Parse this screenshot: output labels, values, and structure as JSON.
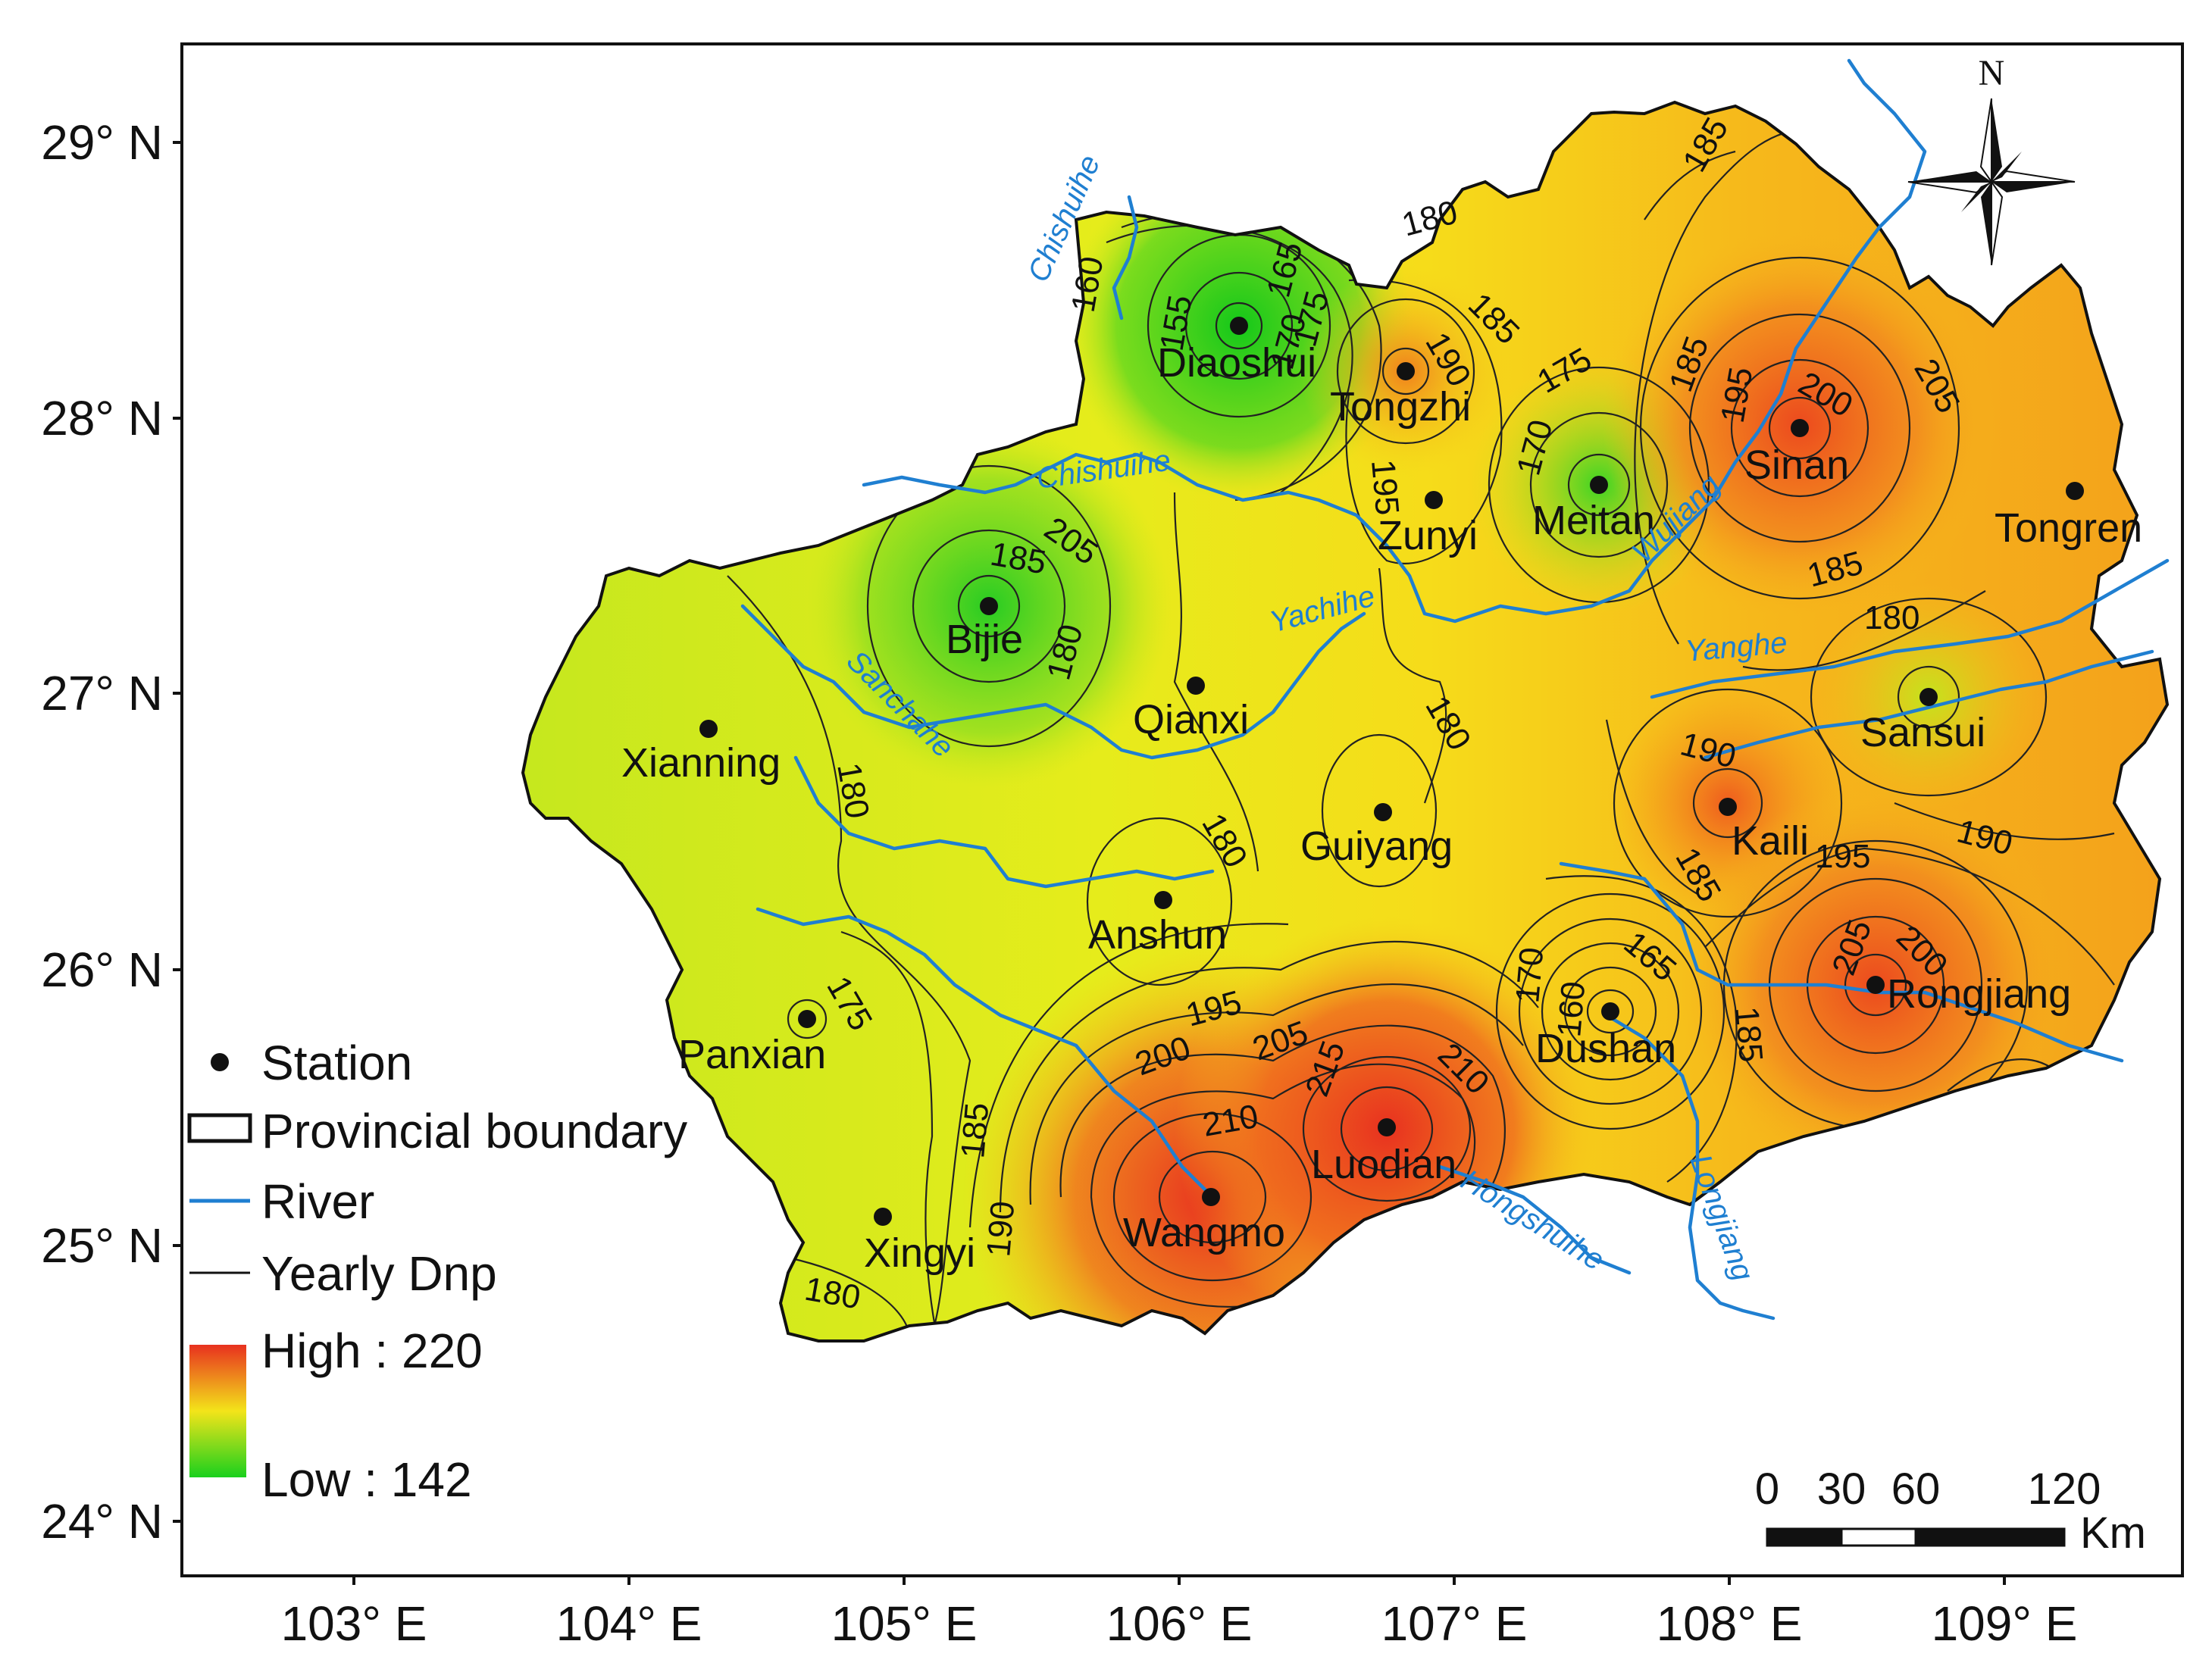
{
  "map": {
    "latitude_ticks": [
      "29° N",
      "28° N",
      "27° N",
      "26° N",
      "25° N",
      "24° N"
    ],
    "longitude_ticks": [
      "103° E",
      "104° E",
      "105° E",
      "106° E",
      "107° E",
      "108° E",
      "109° E"
    ],
    "stations": [
      "Diaoshui",
      "Tongzhi",
      "Meitan",
      "Sinan",
      "Tongren",
      "Zunyi",
      "Bijie",
      "Qianxi",
      "Xianning",
      "Sansui",
      "Kaili",
      "Guiyang",
      "Anshun",
      "Panxian",
      "Dushan",
      "Rongjiang",
      "Luodian",
      "Wangmo",
      "Xingyi"
    ],
    "rivers": [
      "Chishuihe",
      "Chishuihe",
      "Wujiang",
      "Yachihe",
      "Sanchahe",
      "Yanghe",
      "Hongshuihe",
      "Longjiang"
    ],
    "contour_labels": [
      "160",
      "155",
      "165",
      "170",
      "175",
      "180",
      "185",
      "190",
      "195",
      "200",
      "205",
      "210",
      "215",
      "185",
      "185",
      "190",
      "180",
      "185",
      "190",
      "175",
      "170",
      "180",
      "185",
      "190",
      "195",
      "200",
      "205",
      "195",
      "180",
      "190",
      "185",
      "190",
      "195",
      "200",
      "205",
      "160",
      "165",
      "170",
      "175",
      "180",
      "190",
      "195",
      "200",
      "205",
      "210",
      "215",
      "180",
      "175",
      "185",
      "190",
      "180",
      "180",
      "180"
    ],
    "colors": {
      "high": "#e8311f",
      "mid": "#f3e41a",
      "low": "#19d01d",
      "river": "#1f7fd1"
    }
  },
  "legend": {
    "station": "Station",
    "boundary": "Provincial boundary",
    "river": "River",
    "contour": "Yearly Dnp",
    "high": "High : 220",
    "low": "Low : 142"
  },
  "north_arrow": "N",
  "scale_bar": {
    "labels": [
      "0",
      "30",
      "60",
      "120"
    ],
    "unit": "Km"
  }
}
